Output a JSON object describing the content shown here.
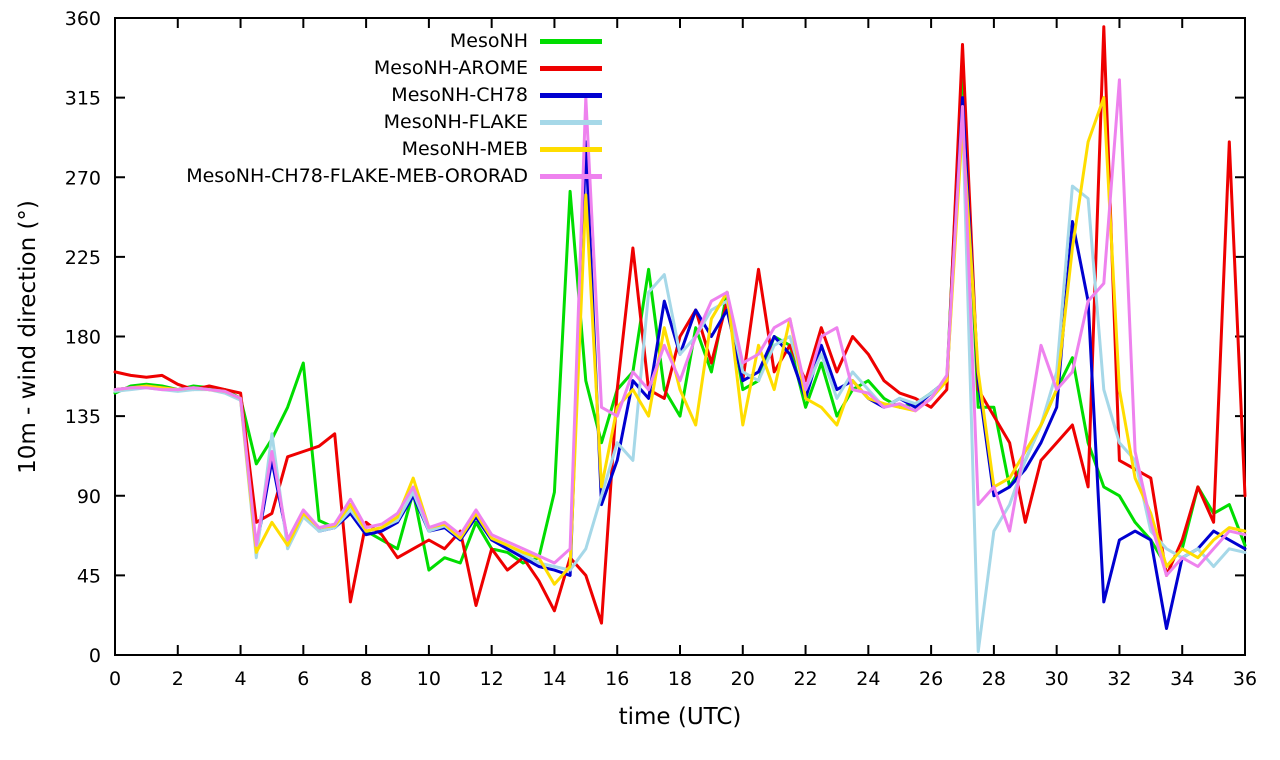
{
  "chart_data": {
    "type": "line",
    "title": "",
    "xlabel": "time (UTC)",
    "ylabel": "10m - wind direction (°)",
    "xlim": [
      0,
      36
    ],
    "ylim": [
      0,
      360
    ],
    "x_ticks": [
      0,
      2,
      4,
      6,
      8,
      10,
      12,
      14,
      16,
      18,
      20,
      22,
      24,
      26,
      28,
      30,
      32,
      34,
      36
    ],
    "y_ticks": [
      0,
      45,
      90,
      135,
      180,
      225,
      270,
      315,
      360
    ],
    "grid": false,
    "legend_position": "top-center",
    "x_start": 0,
    "x_step": 0.5,
    "series": [
      {
        "name": "MesoNH",
        "color": "#00dd00",
        "values": [
          148,
          152,
          153,
          152,
          150,
          152,
          151,
          150,
          145,
          108,
          122,
          140,
          165,
          76,
          72,
          85,
          70,
          65,
          60,
          92,
          48,
          55,
          52,
          75,
          60,
          58,
          52,
          55,
          92,
          262,
          155,
          120,
          150,
          160,
          218,
          150,
          135,
          185,
          160,
          205,
          150,
          155,
          180,
          175,
          140,
          165,
          135,
          150,
          155,
          145,
          140,
          142,
          148,
          155,
          335,
          140,
          140,
          95,
          110,
          130,
          150,
          168,
          120,
          95,
          90,
          75,
          65,
          50,
          60,
          95,
          80,
          85,
          62
        ]
      },
      {
        "name": "MesoNH-AROME",
        "color": "#ee0000",
        "values": [
          160,
          158,
          157,
          158,
          153,
          150,
          152,
          150,
          148,
          75,
          80,
          112,
          115,
          118,
          125,
          30,
          75,
          68,
          55,
          60,
          65,
          60,
          70,
          28,
          60,
          48,
          55,
          42,
          25,
          55,
          45,
          18,
          150,
          230,
          150,
          145,
          180,
          195,
          165,
          200,
          155,
          218,
          160,
          175,
          155,
          185,
          160,
          180,
          170,
          155,
          148,
          145,
          140,
          150,
          345,
          150,
          135,
          120,
          75,
          110,
          120,
          130,
          95,
          355,
          110,
          105,
          100,
          45,
          65,
          95,
          75,
          290,
          90
        ]
      },
      {
        "name": "MesoNH-CH78",
        "color": "#0000d0",
        "values": [
          150,
          151,
          152,
          151,
          150,
          151,
          150,
          149,
          145,
          60,
          110,
          65,
          80,
          70,
          72,
          80,
          68,
          70,
          75,
          90,
          70,
          72,
          65,
          78,
          65,
          60,
          55,
          50,
          48,
          45,
          290,
          85,
          110,
          155,
          145,
          200,
          170,
          195,
          180,
          195,
          155,
          160,
          180,
          170,
          145,
          175,
          150,
          155,
          145,
          140,
          145,
          140,
          148,
          155,
          315,
          155,
          90,
          95,
          105,
          120,
          140,
          245,
          200,
          30,
          65,
          70,
          65,
          15,
          55,
          60,
          70,
          65,
          60
        ]
      },
      {
        "name": "MesoNH-FLAKE",
        "color": "#a6d8e8",
        "values": [
          149,
          150,
          151,
          150,
          149,
          150,
          150,
          148,
          144,
          55,
          125,
          60,
          78,
          70,
          72,
          82,
          70,
          72,
          76,
          92,
          70,
          73,
          66,
          80,
          66,
          62,
          57,
          52,
          50,
          48,
          60,
          90,
          120,
          110,
          205,
          215,
          170,
          180,
          195,
          200,
          160,
          155,
          175,
          180,
          150,
          170,
          145,
          160,
          150,
          140,
          145,
          142,
          148,
          155,
          305,
          2,
          70,
          85,
          110,
          130,
          160,
          265,
          258,
          150,
          120,
          110,
          70,
          60,
          55,
          60,
          50,
          60,
          58
        ]
      },
      {
        "name": "MesoNH-MEB",
        "color": "#ffdd00",
        "values": [
          150,
          151,
          152,
          151,
          150,
          151,
          150,
          149,
          145,
          58,
          75,
          62,
          80,
          72,
          73,
          85,
          70,
          72,
          78,
          100,
          72,
          74,
          66,
          80,
          66,
          62,
          58,
          55,
          40,
          50,
          260,
          95,
          140,
          150,
          135,
          185,
          150,
          130,
          190,
          205,
          130,
          175,
          150,
          190,
          145,
          140,
          130,
          155,
          145,
          142,
          140,
          138,
          145,
          155,
          300,
          160,
          95,
          100,
          115,
          130,
          150,
          230,
          290,
          315,
          150,
          100,
          80,
          50,
          60,
          55,
          65,
          72,
          70
        ]
      },
      {
        "name": "MesoNH-CH78-FLAKE-MEB-ORORAD",
        "color": "#ee82ee",
        "values": [
          150,
          151,
          151,
          150,
          150,
          151,
          150,
          149,
          145,
          62,
          115,
          65,
          82,
          72,
          74,
          88,
          72,
          74,
          80,
          95,
          72,
          75,
          68,
          82,
          68,
          64,
          60,
          56,
          52,
          60,
          315,
          140,
          135,
          160,
          150,
          175,
          155,
          180,
          200,
          205,
          165,
          170,
          185,
          190,
          150,
          180,
          185,
          150,
          148,
          140,
          142,
          138,
          145,
          158,
          310,
          85,
          95,
          70,
          120,
          175,
          150,
          160,
          200,
          210,
          325,
          115,
          75,
          45,
          55,
          50,
          60,
          70,
          68
        ]
      }
    ]
  }
}
